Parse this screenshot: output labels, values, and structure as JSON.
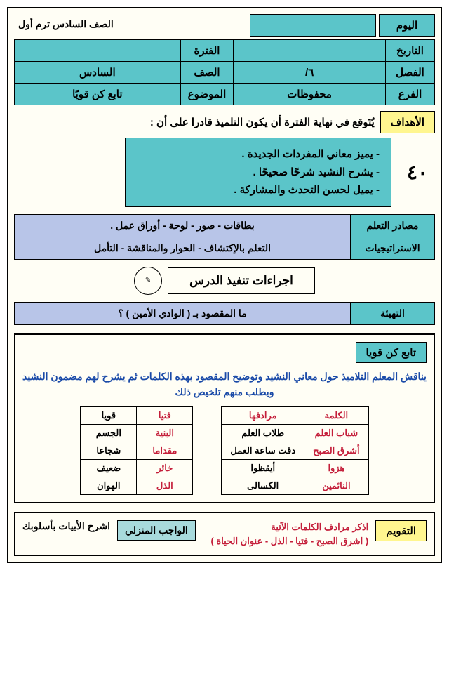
{
  "header": {
    "day_label": "اليوم",
    "grade": "الصف السادس ترم أول"
  },
  "info": {
    "rows": [
      {
        "label": "التاريخ",
        "val1": "",
        "label2": "الفترة",
        "val2": ""
      },
      {
        "label": "الفصل",
        "val1": "٦/",
        "label2": "الصف",
        "val2": "السادس"
      },
      {
        "label": "الفرع",
        "val1": "محفوظات",
        "label2": "الموضوع",
        "val2": "تابع كن قويًا"
      }
    ]
  },
  "goals": {
    "label": "الأهداف",
    "intro": "يُتَوقع في نهاية الفترة أن يكون التلميذ قادرا على أن :",
    "number": "٤٠",
    "items": "- يميز معاني المفردات الجديدة .\n- يشرح النشيد شرحًا صحيحًا .\n- يميل لحسن التحدث والمشاركة ."
  },
  "sources": {
    "rows": [
      {
        "label": "مصادر التعلم",
        "val": "بطاقات - صور - لوحة - أوراق عمل ."
      },
      {
        "label": "الاستراتيجيات",
        "val": "التعلم بالإكتشاف - الحوار والمناقشة - التأمل"
      }
    ]
  },
  "procedures_title": "اجراءات تنفيذ الدرس",
  "prep": {
    "label": "التهيئة",
    "val": "ما المقصود بـ ( الوادي الأمين ) ؟"
  },
  "content": {
    "title": "تابع كن قويا",
    "text": "يناقش المعلم التلاميذ حول معاني النشيد وتوضيح المقصود بهذه الكلمات ثم يشرح لهم مضمون النشيد ويطلب منهم تلخيص ذلك",
    "table1": {
      "headers": [
        "الكلمة",
        "مرادفها"
      ],
      "rows": [
        [
          "شباب العلم",
          "طلاب العلم"
        ],
        [
          "أشرق الصبح",
          "دقت ساعة العمل"
        ],
        [
          "هزوا",
          "أيقظوا"
        ],
        [
          "النائمين",
          "الكسالى"
        ]
      ]
    },
    "table2": {
      "rows": [
        [
          "فتيا",
          "قويا"
        ],
        [
          "البنية",
          "الجسم"
        ],
        [
          "مقداما",
          "شجاعا"
        ],
        [
          "خائر",
          "ضعيف"
        ],
        [
          "الذل",
          "الهوان"
        ]
      ]
    }
  },
  "evaluation": {
    "label": "التقويم",
    "text": "اذكر مرادف الكلمات الآتية\n( اشرق الصبح - فتيا - الذل - عنوان الحياة )",
    "hw_label": "الواجب المنزلي",
    "hw_text": "اشرح الأبيات بأسلوبك"
  },
  "colors": {
    "teal": "#5bc5c9",
    "yellow": "#fff68f",
    "lavender": "#b8c5e8",
    "cream": "#fffef5",
    "red": "#c41e3a",
    "blue": "#1a4aa8",
    "mint": "#a8dadc"
  }
}
